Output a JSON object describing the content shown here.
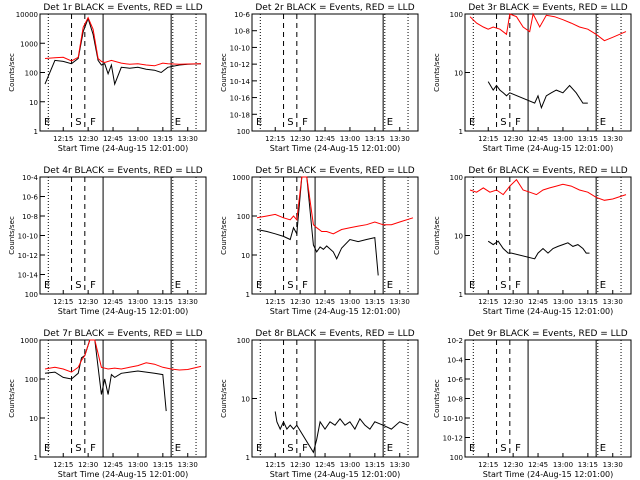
{
  "figure": {
    "time_ticks": [
      "12:15",
      "12:30",
      "12:45",
      "13:00",
      "13:15",
      "13:30"
    ],
    "xlabel": "Start Time (24-Aug-15 12:01:00)",
    "ylabel": "Counts/sec",
    "colors": {
      "events": "#000000",
      "lld": "#ff0000",
      "axes": "#000000",
      "background": "#ffffff"
    }
  },
  "chart_data": [
    {
      "type": "line",
      "title": "Det 1r BLACK = Events, RED = LLD",
      "xlabel": "Start Time (24-Aug-15 12:01:00)",
      "ylabel": "Counts/sec",
      "yscale": "log",
      "ylim": [
        1,
        10000
      ],
      "ytick_labels": [
        "1",
        "10",
        "100",
        "1000",
        "10000"
      ],
      "marker_labels": [
        "E",
        "S",
        "F",
        "E"
      ],
      "series": [
        {
          "name": "Events",
          "color": "#000000",
          "x": [
            "12:04",
            "12:10",
            "12:15",
            "12:20",
            "12:24",
            "12:27",
            "12:30",
            "12:33",
            "12:36",
            "12:38",
            "12:40",
            "12:42",
            "12:44",
            "12:46",
            "12:50",
            "12:55",
            "13:00",
            "13:05",
            "13:10",
            "13:14",
            "13:18",
            "13:25",
            "13:30",
            "13:38"
          ],
          "values": [
            40,
            260,
            240,
            200,
            300,
            2500,
            7000,
            2000,
            260,
            180,
            200,
            90,
            180,
            40,
            150,
            140,
            150,
            130,
            120,
            100,
            150,
            180,
            190,
            200
          ]
        },
        {
          "name": "LLD",
          "color": "#ff0000",
          "x": [
            "12:04",
            "12:10",
            "12:15",
            "12:20",
            "12:24",
            "12:27",
            "12:30",
            "12:33",
            "12:36",
            "12:38",
            "12:40",
            "12:44",
            "12:50",
            "12:55",
            "13:00",
            "13:05",
            "13:10",
            "13:15",
            "13:18",
            "13:25",
            "13:30",
            "13:38"
          ],
          "values": [
            300,
            320,
            330,
            250,
            330,
            3500,
            7500,
            3000,
            300,
            240,
            220,
            260,
            210,
            190,
            200,
            180,
            170,
            210,
            200,
            190,
            195,
            200
          ]
        }
      ]
    },
    {
      "type": "line",
      "title": "Det 2r BLACK = Events, RED = LLD",
      "xlabel": "Start Time (24-Aug-15 12:01:00)",
      "ylabel": "Counts/sec",
      "yscale": "log",
      "ylim": [
        1e-06,
        1e-20
      ],
      "ytick_labels": [
        "10^-6",
        "10^-8",
        "10^-10",
        "10^-12",
        "10^-14",
        "10^-16",
        "10^-18",
        "10^0"
      ],
      "marker_labels": [
        "E",
        "S",
        "F",
        "E"
      ],
      "series": []
    },
    {
      "type": "line",
      "title": "Det 3r BLACK = Events, RED = LLD",
      "xlabel": "Start Time (24-Aug-15 12:01:00)",
      "ylabel": "Counts/sec",
      "yscale": "log",
      "ylim": [
        1,
        100
      ],
      "ytick_labels": [
        "1",
        "10",
        "100"
      ],
      "marker_labels": [
        "E",
        "S",
        "F",
        "E"
      ],
      "series": [
        {
          "name": "Events",
          "color": "#000000",
          "x": [
            "12:15",
            "12:18",
            "12:20",
            "12:22",
            "12:24",
            "12:26",
            "12:28",
            "12:43",
            "12:45",
            "12:47",
            "12:50",
            "12:53",
            "12:56",
            "13:00",
            "13:04",
            "13:08",
            "13:12",
            "13:15"
          ],
          "values": [
            7,
            5,
            6,
            5,
            4.5,
            4,
            4.5,
            3,
            4,
            2.5,
            4,
            4.5,
            5,
            4.5,
            6,
            4.5,
            3,
            3
          ]
        },
        {
          "name": "LLD",
          "color": "#ff0000",
          "x": [
            "12:04",
            "12:08",
            "12:12",
            "12:15",
            "12:18",
            "12:22",
            "12:26",
            "12:28",
            "12:32",
            "12:36",
            "12:40",
            "12:42",
            "12:46",
            "12:50",
            "12:55",
            "13:00",
            "13:05",
            "13:10",
            "13:15",
            "13:20",
            "13:25",
            "13:30",
            "13:38"
          ],
          "values": [
            90,
            70,
            60,
            55,
            60,
            55,
            45,
            100,
            90,
            60,
            50,
            100,
            60,
            95,
            90,
            80,
            70,
            60,
            55,
            45,
            35,
            40,
            50
          ]
        }
      ]
    },
    {
      "type": "line",
      "title": "Det 4r BLACK = Events, RED = LLD",
      "xlabel": "Start Time (24-Aug-15 12:01:00)",
      "ylabel": "Counts/sec",
      "yscale": "log",
      "ylim": [
        0.0001,
        1e-16
      ],
      "ytick_labels": [
        "10^-4",
        "10^-6",
        "10^-8",
        "10^-10",
        "10^-12",
        "10^-14",
        "10^0"
      ],
      "marker_labels": [
        "E",
        "S",
        "F",
        "E"
      ],
      "series": []
    },
    {
      "type": "line",
      "title": "Det 5r BLACK = Events, RED = LLD",
      "xlabel": "Start Time (24-Aug-15 12:01:00)",
      "ylabel": "Counts/sec",
      "yscale": "log",
      "ylim": [
        1,
        1000
      ],
      "ytick_labels": [
        "1",
        "10",
        "100",
        "1000"
      ],
      "marker_labels": [
        "E",
        "S",
        "F",
        "E"
      ],
      "series": [
        {
          "name": "Events",
          "color": "#000000",
          "x": [
            "12:04",
            "12:10",
            "12:15",
            "12:20",
            "12:24",
            "12:26",
            "12:28",
            "12:31",
            "12:34",
            "12:38",
            "12:40",
            "12:42",
            "12:44",
            "12:46",
            "12:50",
            "12:52",
            "12:55",
            "13:00",
            "13:05",
            "13:10",
            "13:15",
            "13:17"
          ],
          "values": [
            45,
            40,
            35,
            30,
            25,
            50,
            35,
            1000,
            1000,
            18,
            12,
            16,
            14,
            17,
            12,
            8,
            15,
            25,
            22,
            25,
            28,
            3
          ]
        },
        {
          "name": "LLD",
          "color": "#ff0000",
          "x": [
            "12:04",
            "12:10",
            "12:15",
            "12:20",
            "12:24",
            "12:26",
            "12:28",
            "12:31",
            "12:34",
            "12:38",
            "12:40",
            "12:43",
            "12:46",
            "12:50",
            "12:55",
            "13:00",
            "13:05",
            "13:10",
            "13:15",
            "13:20",
            "13:25",
            "13:30",
            "13:38"
          ],
          "values": [
            90,
            100,
            110,
            90,
            80,
            100,
            80,
            1000,
            1000,
            60,
            50,
            40,
            40,
            35,
            45,
            50,
            55,
            60,
            70,
            60,
            60,
            70,
            90
          ]
        }
      ]
    },
    {
      "type": "line",
      "title": "Det 6r BLACK = Events, RED = LLD",
      "xlabel": "Start Time (24-Aug-15 12:01:00)",
      "ylabel": "Counts/sec",
      "yscale": "log",
      "ylim": [
        1,
        100
      ],
      "ytick_labels": [
        "1",
        "10",
        "100"
      ],
      "marker_labels": [
        "E",
        "S",
        "F",
        "E"
      ],
      "series": [
        {
          "name": "Events",
          "color": "#000000",
          "x": [
            "12:15",
            "12:18",
            "12:21",
            "12:24",
            "12:27",
            "12:29",
            "12:43",
            "12:45",
            "12:48",
            "12:51",
            "12:54",
            "12:57",
            "13:00",
            "13:03",
            "13:06",
            "13:09",
            "13:12",
            "13:14",
            "13:16"
          ],
          "values": [
            8,
            7,
            8,
            6,
            5,
            5,
            4,
            5,
            6,
            5,
            6,
            6.5,
            7,
            7.5,
            6.5,
            7,
            6,
            5,
            5
          ]
        },
        {
          "name": "LLD",
          "color": "#ff0000",
          "x": [
            "12:04",
            "12:08",
            "12:12",
            "12:16",
            "12:20",
            "12:24",
            "12:28",
            "12:32",
            "12:36",
            "12:40",
            "12:44",
            "12:48",
            "12:52",
            "12:56",
            "13:00",
            "13:05",
            "13:10",
            "13:15",
            "13:20",
            "13:25",
            "13:30",
            "13:38"
          ],
          "values": [
            60,
            55,
            65,
            55,
            60,
            50,
            70,
            90,
            60,
            55,
            50,
            60,
            65,
            70,
            75,
            70,
            60,
            55,
            45,
            40,
            42,
            50
          ]
        }
      ]
    },
    {
      "type": "line",
      "title": "Det 7r BLACK = Events, RED = LLD",
      "xlabel": "Start Time (24-Aug-15 12:01:00)",
      "ylabel": "Counts/sec",
      "yscale": "log",
      "ylim": [
        1,
        1000
      ],
      "ytick_labels": [
        "1",
        "10",
        "100",
        "1000"
      ],
      "marker_labels": [
        "E",
        "S",
        "F",
        "E"
      ],
      "series": [
        {
          "name": "Events",
          "color": "#000000",
          "x": [
            "12:04",
            "12:10",
            "12:15",
            "12:20",
            "12:24",
            "12:26",
            "12:28",
            "12:31",
            "12:34",
            "12:38",
            "12:40",
            "12:42",
            "12:44",
            "12:46",
            "12:50",
            "12:55",
            "13:00",
            "13:05",
            "13:10",
            "13:15",
            "13:17"
          ],
          "values": [
            140,
            150,
            110,
            100,
            140,
            350,
            400,
            1000,
            1000,
            40,
            100,
            40,
            130,
            110,
            140,
            150,
            160,
            150,
            140,
            130,
            15
          ]
        },
        {
          "name": "LLD",
          "color": "#ff0000",
          "x": [
            "12:04",
            "12:10",
            "12:15",
            "12:20",
            "12:24",
            "12:26",
            "12:28",
            "12:31",
            "12:34",
            "12:38",
            "12:42",
            "12:46",
            "12:50",
            "12:55",
            "13:00",
            "13:05",
            "13:10",
            "13:15",
            "13:20",
            "13:25",
            "13:30",
            "13:38"
          ],
          "values": [
            180,
            200,
            180,
            150,
            200,
            300,
            400,
            1000,
            1000,
            200,
            180,
            190,
            180,
            200,
            220,
            260,
            240,
            200,
            180,
            170,
            175,
            210
          ]
        }
      ]
    },
    {
      "type": "line",
      "title": "Det 8r BLACK = Events, RED = LLD",
      "xlabel": "Start Time (24-Aug-15 12:01:00)",
      "ylabel": "Counts/sec",
      "yscale": "log",
      "ylim": [
        1,
        100
      ],
      "ytick_labels": [
        "1",
        "10",
        "100"
      ],
      "marker_labels": [
        "E",
        "S",
        "F",
        "E"
      ],
      "series": [
        {
          "name": "Events",
          "color": "#000000",
          "x": [
            "12:15",
            "12:16",
            "12:18",
            "12:20",
            "12:22",
            "12:24",
            "12:26",
            "12:28",
            "12:38",
            "12:40",
            "12:42",
            "12:45",
            "12:48",
            "12:51",
            "12:54",
            "12:57",
            "13:00",
            "13:03",
            "13:06",
            "13:09",
            "13:12",
            "13:15",
            "13:20",
            "13:25",
            "13:30",
            "13:35"
          ],
          "values": [
            6,
            4,
            3,
            4,
            3,
            3.5,
            3,
            3.5,
            1.2,
            2,
            4,
            3,
            4,
            3.5,
            4.5,
            3.5,
            4,
            3,
            4.5,
            3.5,
            3,
            4,
            3.5,
            3,
            4,
            3.5
          ]
        }
      ]
    },
    {
      "type": "line",
      "title": "Det 9r BLACK = Events, RED = LLD",
      "xlabel": "Start Time (24-Aug-15 12:01:00)",
      "ylabel": "Counts/sec",
      "yscale": "log",
      "ylim": [
        0.01,
        1e-14
      ],
      "ytick_labels": [
        "10^-2",
        "10^-4",
        "10^-6",
        "10^-8",
        "10^-10",
        "10^-12",
        "10^0"
      ],
      "marker_labels": [
        "E",
        "S",
        "F",
        "E"
      ],
      "series": []
    }
  ]
}
